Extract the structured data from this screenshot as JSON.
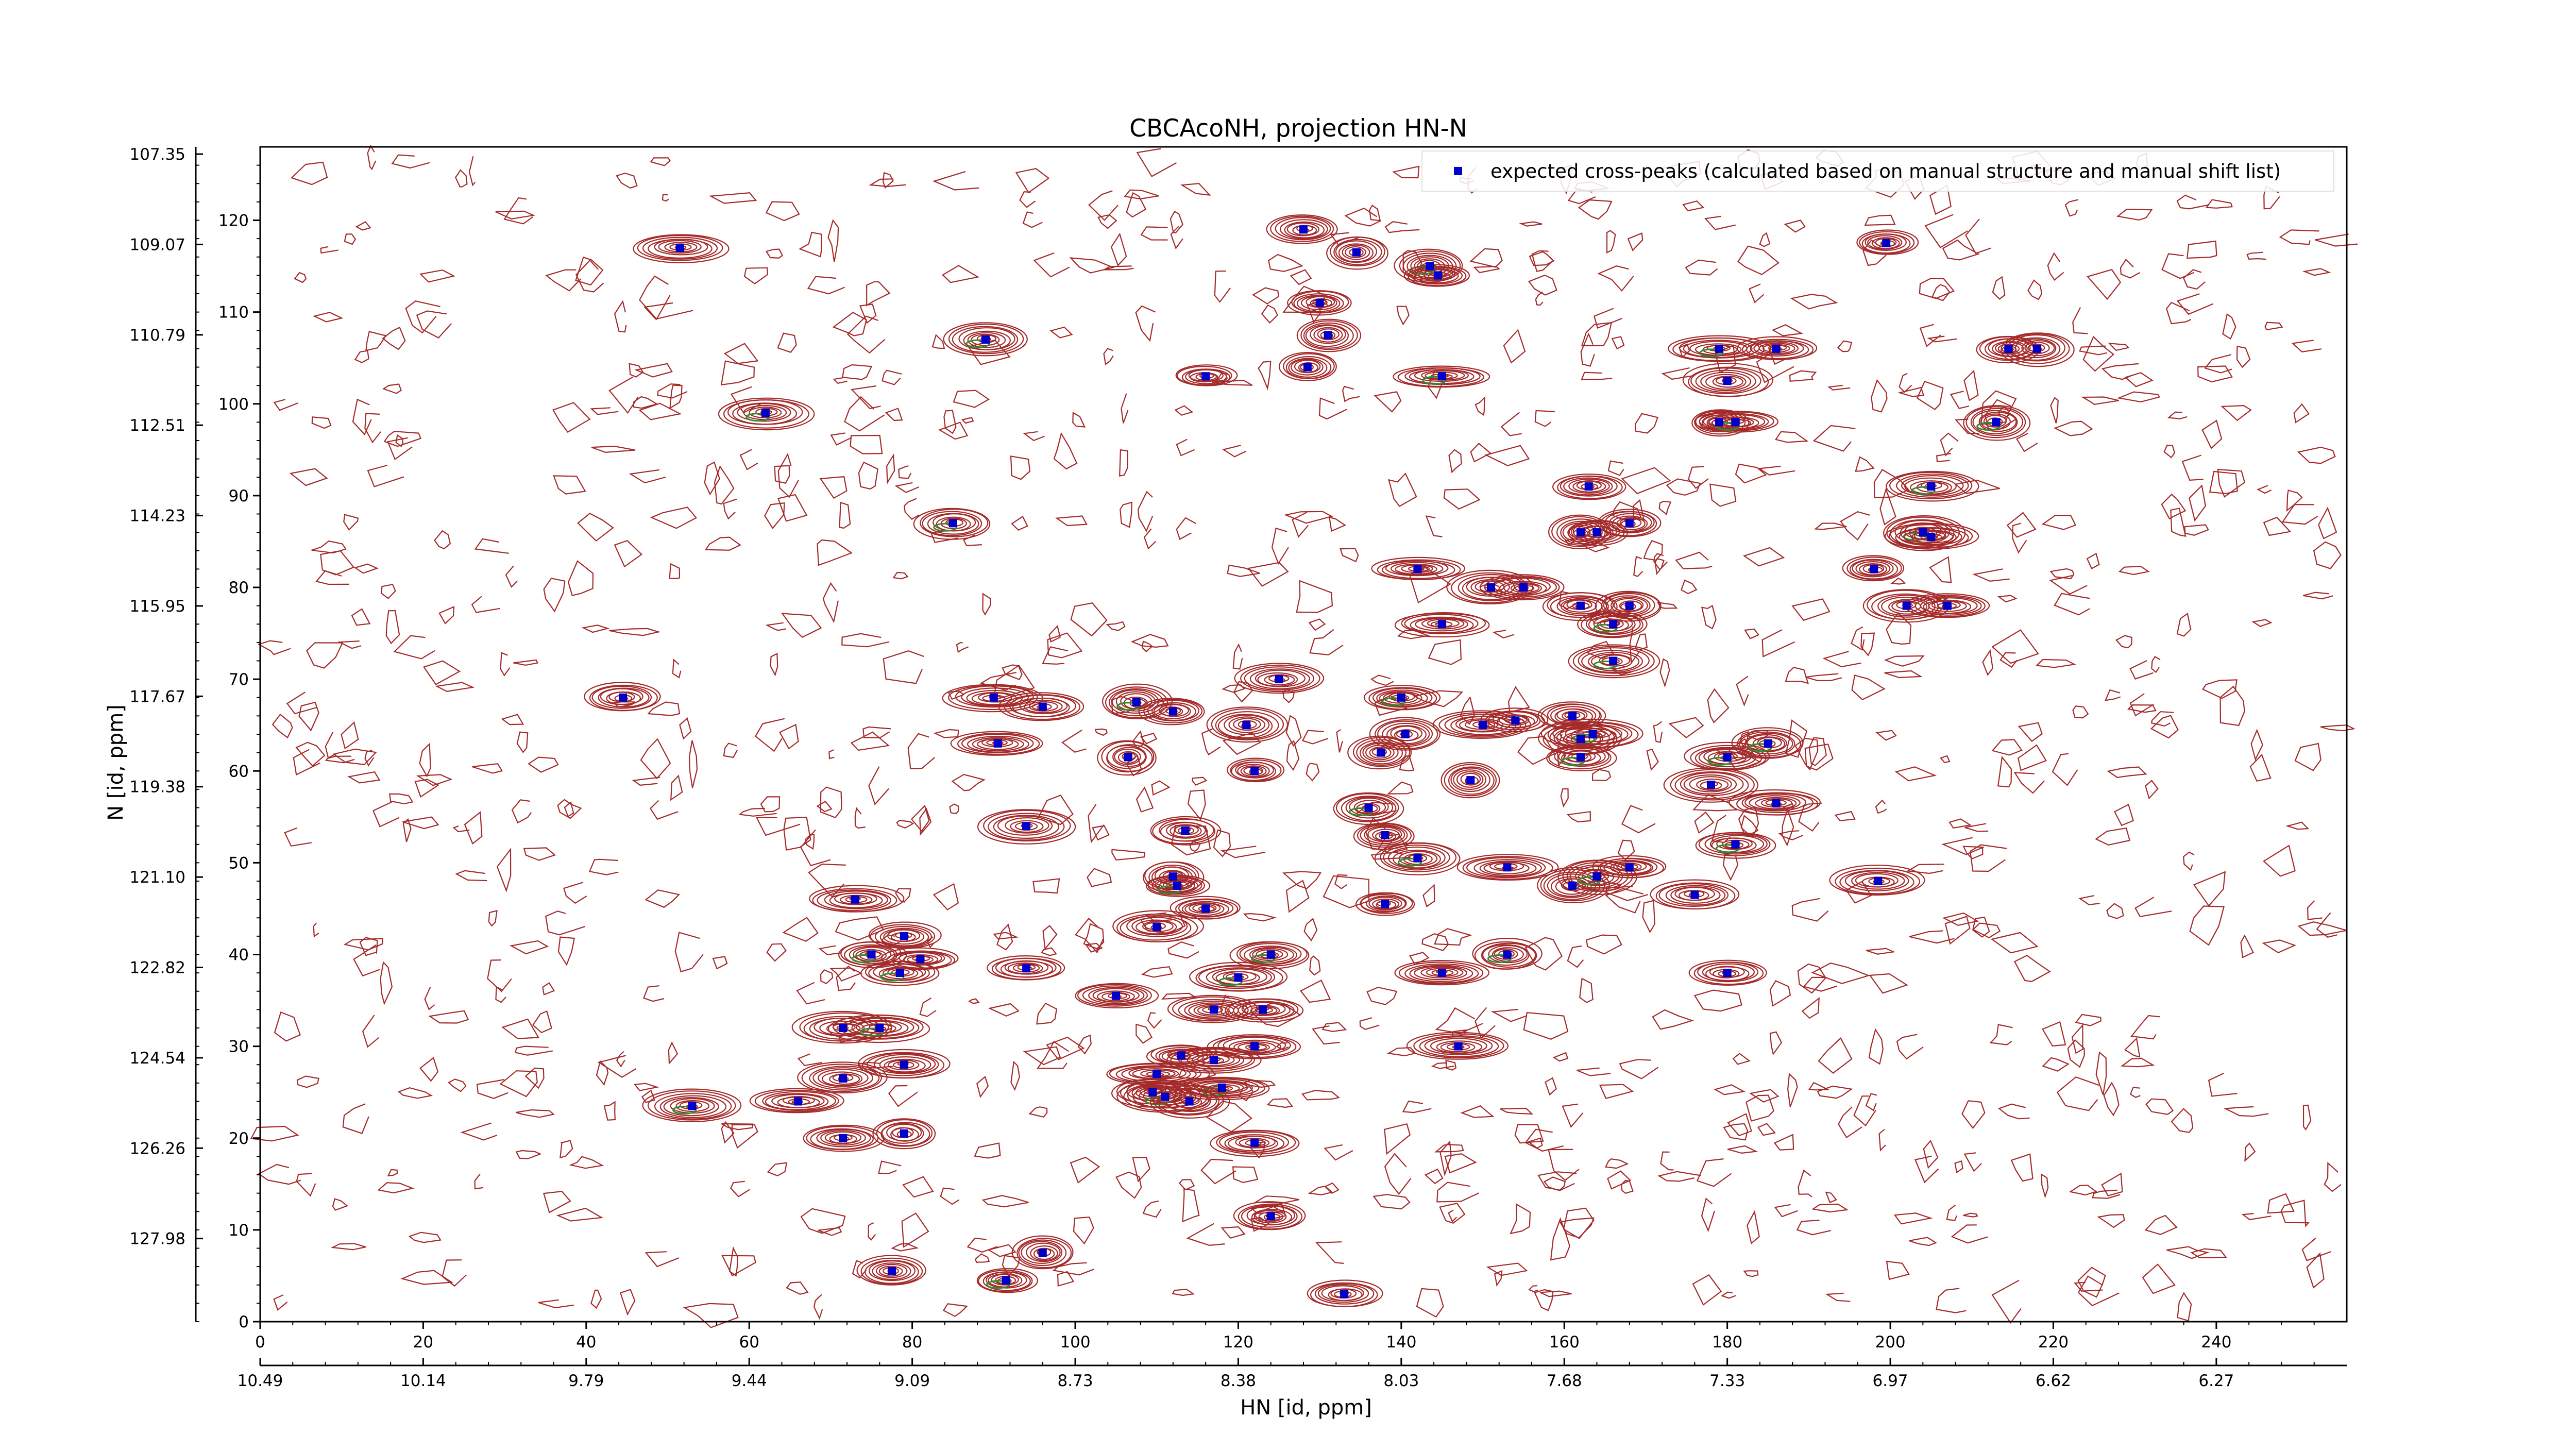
{
  "chart_data": {
    "type": "scatter",
    "title": "CBCAcoNH, projection HN-N",
    "xlabel": "HN [id, ppm]",
    "ylabel": "N [id, ppm]",
    "x_index_ticks": [
      "0",
      "20",
      "40",
      "60",
      "80",
      "100",
      "120",
      "140",
      "160",
      "180",
      "200",
      "220",
      "240"
    ],
    "y_index_ticks": [
      "0",
      "10",
      "20",
      "30",
      "40",
      "50",
      "60",
      "70",
      "80",
      "90",
      "100",
      "110",
      "120"
    ],
    "x_ppm_ticks": [
      "10.49",
      "10.14",
      "9.79",
      "9.44",
      "9.09",
      "8.73",
      "8.38",
      "8.03",
      "7.68",
      "7.33",
      "6.97",
      "6.62",
      "6.27"
    ],
    "y_ppm_ticks": [
      "107.35",
      "109.07",
      "110.79",
      "112.51",
      "114.23",
      "115.95",
      "117.67",
      "119.38",
      "121.10",
      "122.82",
      "124.54",
      "126.26",
      "127.98"
    ],
    "x_index_range": [
      0,
      256
    ],
    "y_index_range": [
      0,
      128
    ],
    "contour_color": "#a52a2a",
    "negative_contour_color": "#2e8b2e",
    "marker_color": "#0000cc",
    "legend": {
      "position": "top-right",
      "label": "expected cross-peaks (calculated based on manual structure and manual shift list)"
    },
    "series": [
      {
        "name": "expected cross-peaks (calculated based on manual structure and manual shift list)",
        "points": [
          [
            51.5,
            117
          ],
          [
            89,
            107
          ],
          [
            62,
            99
          ],
          [
            85,
            87
          ],
          [
            44.5,
            68
          ],
          [
            73,
            46
          ],
          [
            75,
            40
          ],
          [
            79,
            42
          ],
          [
            78.5,
            38
          ],
          [
            81,
            39.5
          ],
          [
            71.5,
            32
          ],
          [
            76,
            32
          ],
          [
            71.5,
            26.5
          ],
          [
            79,
            28
          ],
          [
            53,
            23.5
          ],
          [
            66,
            24
          ],
          [
            71.5,
            20
          ],
          [
            79,
            20.5
          ],
          [
            77.5,
            5.5
          ],
          [
            91.5,
            4.5
          ],
          [
            96,
            7.5
          ],
          [
            94,
            38.5
          ],
          [
            105,
            35.5
          ],
          [
            90,
            68
          ],
          [
            96,
            67
          ],
          [
            90.5,
            63
          ],
          [
            94,
            54
          ],
          [
            107.5,
            67.5
          ],
          [
            112,
            66.5
          ],
          [
            106.5,
            61.5
          ],
          [
            110,
            43
          ],
          [
            113.5,
            53.5
          ],
          [
            112,
            48.5
          ],
          [
            112.5,
            47.5
          ],
          [
            116,
            45
          ],
          [
            120,
            37.5
          ],
          [
            124,
            40
          ],
          [
            117,
            34
          ],
          [
            123,
            34
          ],
          [
            122,
            30
          ],
          [
            117,
            28.5
          ],
          [
            113,
            29
          ],
          [
            118,
            25.5
          ],
          [
            110,
            27
          ],
          [
            109.5,
            25
          ],
          [
            111,
            24.5
          ],
          [
            114,
            24
          ],
          [
            122,
            19.5
          ],
          [
            124,
            11.5
          ],
          [
            133,
            3
          ],
          [
            116,
            103
          ],
          [
            128.5,
            104
          ],
          [
            128,
            119
          ],
          [
            134.5,
            116.5
          ],
          [
            130,
            111
          ],
          [
            131,
            107.5
          ],
          [
            143.5,
            115
          ],
          [
            144.5,
            114
          ],
          [
            145,
            103
          ],
          [
            125,
            70
          ],
          [
            121,
            65
          ],
          [
            122,
            60
          ],
          [
            137.5,
            62
          ],
          [
            136,
            56
          ],
          [
            138,
            53
          ],
          [
            142,
            50.5
          ],
          [
            138,
            45.5
          ],
          [
            145,
            38
          ],
          [
            153,
            40
          ],
          [
            147,
            30
          ],
          [
            148.5,
            59
          ],
          [
            150,
            65
          ],
          [
            154,
            65.5
          ],
          [
            153,
            49.5
          ],
          [
            140,
            68
          ],
          [
            140.5,
            64
          ],
          [
            142,
            82
          ],
          [
            145,
            76
          ],
          [
            151,
            80
          ],
          [
            155,
            80
          ],
          [
            162,
            78
          ],
          [
            163,
            91
          ],
          [
            162,
            86
          ],
          [
            164,
            86
          ],
          [
            168,
            87
          ],
          [
            166,
            76
          ],
          [
            168,
            78
          ],
          [
            166,
            72
          ],
          [
            161,
            66
          ],
          [
            162,
            63.5
          ],
          [
            163.5,
            64
          ],
          [
            162,
            61.5
          ],
          [
            161,
            47.5
          ],
          [
            164,
            48.5
          ],
          [
            168,
            49.5
          ],
          [
            176,
            46.5
          ],
          [
            180,
            38
          ],
          [
            178,
            58.5
          ],
          [
            180,
            61.5
          ],
          [
            185,
            63
          ],
          [
            186,
            56.5
          ],
          [
            181,
            52
          ],
          [
            179,
            106
          ],
          [
            180,
            102.5
          ],
          [
            179,
            98
          ],
          [
            181,
            98
          ],
          [
            186,
            106
          ],
          [
            199.5,
            117.5
          ],
          [
            198.5,
            48
          ],
          [
            198,
            82
          ],
          [
            205,
            91
          ],
          [
            204,
            86
          ],
          [
            205,
            85.5
          ],
          [
            202,
            78
          ],
          [
            207,
            78
          ],
          [
            213,
            98
          ],
          [
            214.5,
            106
          ],
          [
            218,
            106
          ]
        ]
      }
    ]
  }
}
